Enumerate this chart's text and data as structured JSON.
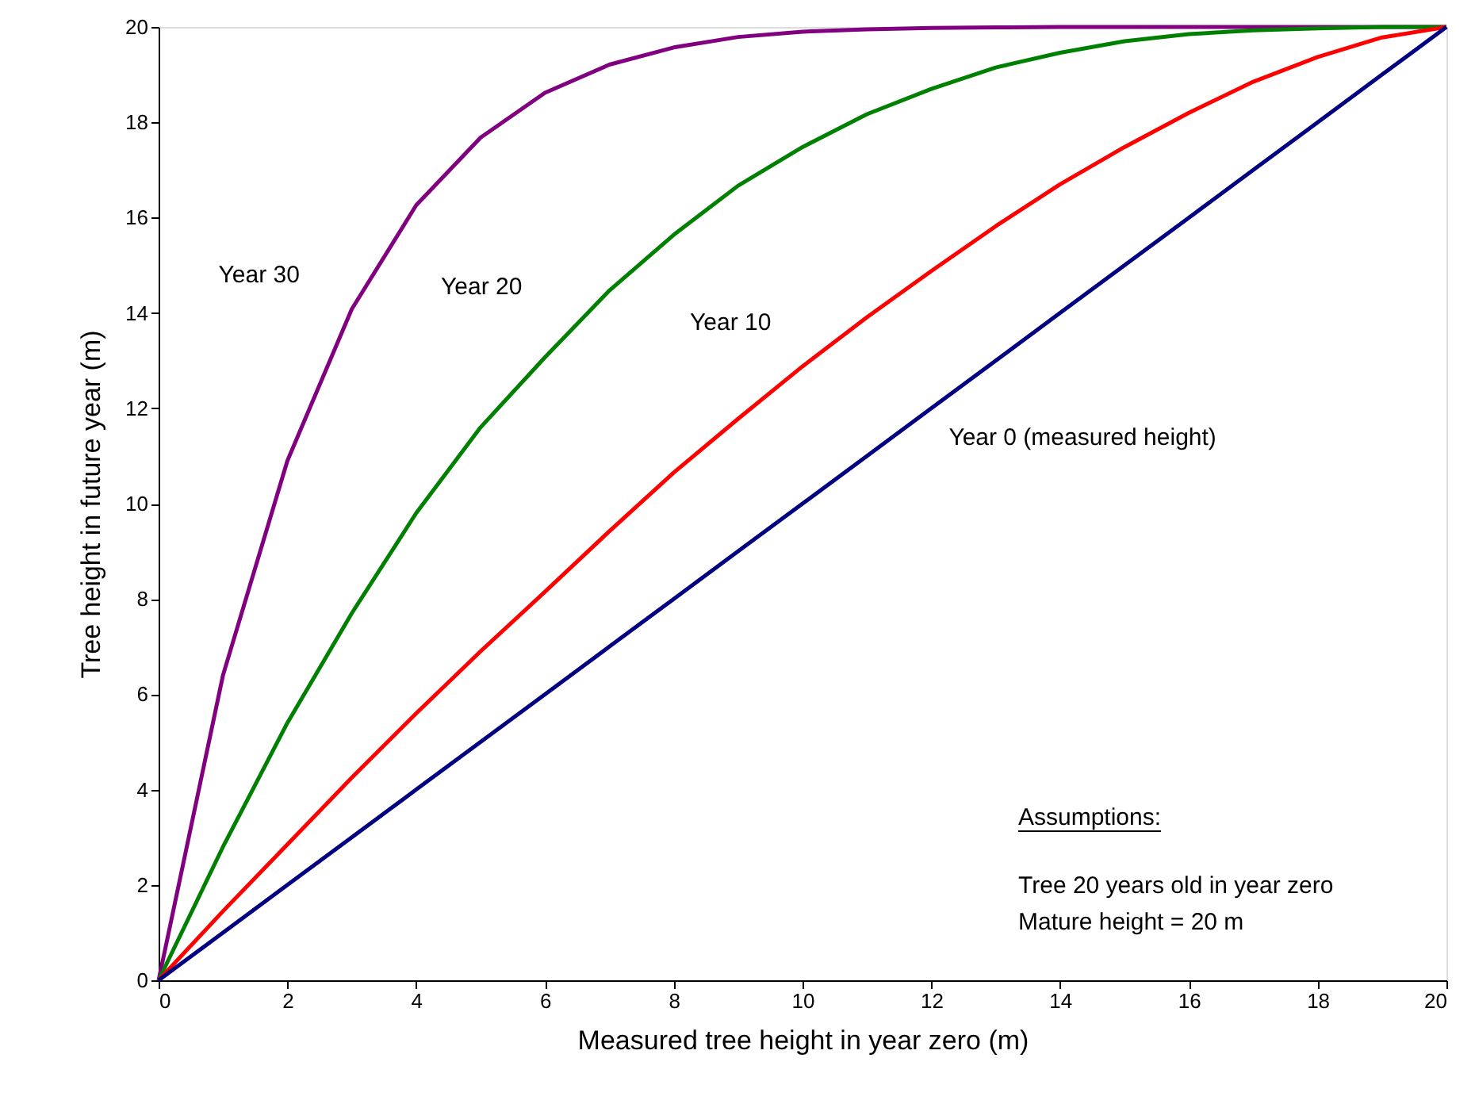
{
  "chart_data": {
    "type": "line",
    "xlabel": "Measured tree height in year zero (m)",
    "ylabel": "Tree height in future year (m)",
    "x": [
      0,
      1,
      2,
      3,
      4,
      5,
      6,
      7,
      8,
      9,
      10,
      11,
      12,
      13,
      14,
      15,
      16,
      17,
      18,
      19,
      20
    ],
    "series": [
      {
        "name": "Year 30",
        "color": "#800080",
        "values": [
          0,
          6.4,
          10.9,
          14.08,
          16.26,
          17.68,
          18.62,
          19.21,
          19.57,
          19.79,
          19.9,
          19.95,
          19.98,
          19.99,
          20,
          20,
          20,
          20,
          20,
          20,
          20
        ]
      },
      {
        "name": "Year 20",
        "color": "#008000",
        "values": [
          0,
          2.8,
          5.4,
          7.7,
          9.8,
          11.6,
          13.07,
          14.47,
          15.64,
          16.67,
          17.48,
          18.17,
          18.7,
          19.15,
          19.46,
          19.7,
          19.85,
          19.93,
          19.97,
          20,
          20
        ]
      },
      {
        "name": "Year 10",
        "color": "#ff0000",
        "values": [
          0,
          1.45,
          2.85,
          4.25,
          5.6,
          6.9,
          8.15,
          9.42,
          10.65,
          11.78,
          12.88,
          13.91,
          14.88,
          15.82,
          16.7,
          17.48,
          18.2,
          18.85,
          19.37,
          19.78,
          20
        ]
      },
      {
        "name": "Year 0 (measured height)",
        "color": "#000080",
        "values": [
          0,
          1,
          2,
          3,
          4,
          5,
          6,
          7,
          8,
          9,
          10,
          11,
          12,
          13,
          14,
          15,
          16,
          17,
          18,
          19,
          20
        ]
      }
    ],
    "xlim": [
      0,
      20
    ],
    "xticks": [
      0,
      2,
      4,
      6,
      8,
      10,
      12,
      14,
      16,
      18,
      20
    ],
    "ylim": [
      0,
      20
    ],
    "yticks": [
      0,
      2,
      4,
      6,
      8,
      10,
      12,
      14,
      16,
      18,
      20
    ],
    "grid": false,
    "marker": "none",
    "line_style": "solid",
    "annotations": [
      "Assumptions:",
      "Tree 20 years old in year zero",
      "Mature height = 20 m"
    ]
  }
}
